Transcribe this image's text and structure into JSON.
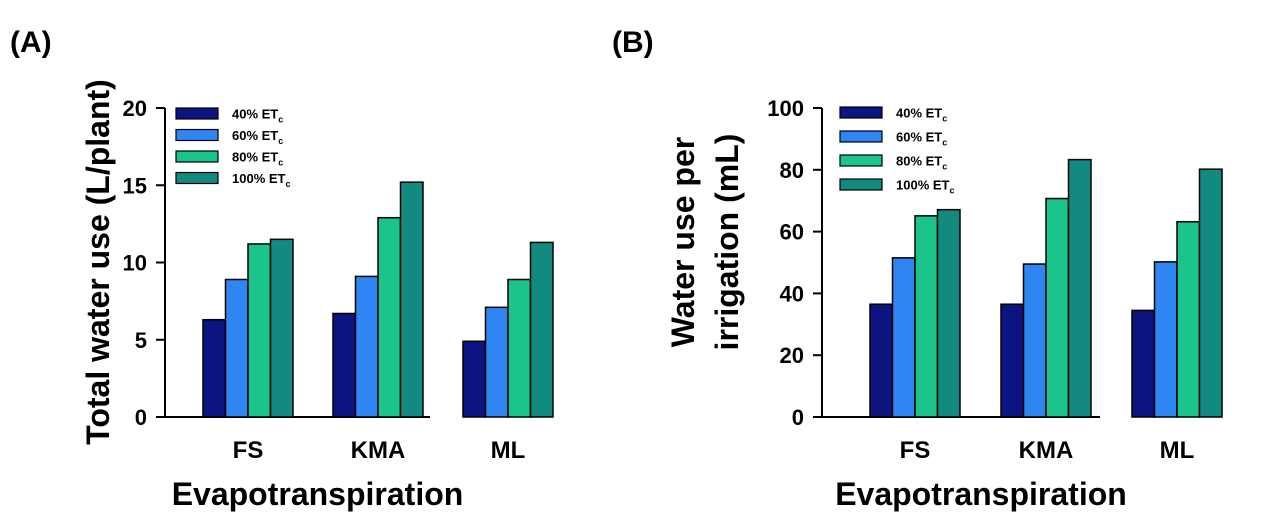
{
  "colors": {
    "40% ET_c": "#0b1480",
    "60% ET_c": "#2f86f2",
    "80% ET_c": "#1bc48a",
    "100% ET_c": "#128a80"
  },
  "chart_data": [
    {
      "type": "bar",
      "panel": "(A)",
      "categories": [
        "FS",
        "KMA",
        "ML"
      ],
      "series": [
        {
          "name": "40% ET",
          "sub": "c",
          "values": [
            6.3,
            6.7,
            4.9
          ]
        },
        {
          "name": "60% ET",
          "sub": "c",
          "values": [
            8.9,
            9.1,
            7.1
          ]
        },
        {
          "name": "80% ET",
          "sub": "c",
          "values": [
            11.2,
            12.9,
            8.9
          ]
        },
        {
          "name": "100% ET",
          "sub": "c",
          "values": [
            11.5,
            15.2,
            11.3
          ]
        }
      ],
      "xlabel": "Evapotranspiration",
      "ylabel_lines": [
        "Total water use (L/plant)"
      ],
      "ylim": [
        0,
        20
      ],
      "yticks": [
        0,
        5,
        10,
        15,
        20
      ],
      "legend": "top-left"
    },
    {
      "type": "bar",
      "panel": "(B)",
      "categories": [
        "FS",
        "KMA",
        "ML"
      ],
      "series": [
        {
          "name": "40% ET",
          "sub": "c",
          "values": [
            36.5,
            36.5,
            34.5
          ]
        },
        {
          "name": "60% ET",
          "sub": "c",
          "values": [
            51.5,
            49.5,
            50.2
          ]
        },
        {
          "name": "80% ET",
          "sub": "c",
          "values": [
            65.1,
            70.7,
            63.2
          ]
        },
        {
          "name": "100% ET",
          "sub": "c",
          "values": [
            67.1,
            83.3,
            80.2
          ]
        }
      ],
      "xlabel": "Evapotranspiration",
      "ylabel_lines": [
        "Water use per",
        "irrigation (mL)"
      ],
      "ylim": [
        0,
        100
      ],
      "yticks": [
        0,
        20,
        40,
        60,
        80,
        100
      ],
      "legend": "top-left"
    }
  ]
}
